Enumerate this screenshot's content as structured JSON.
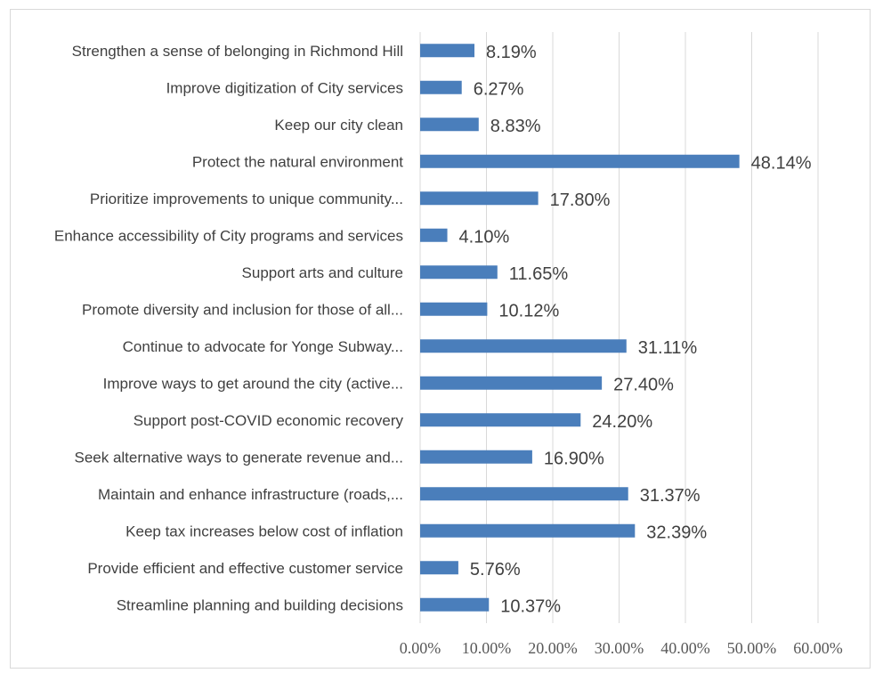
{
  "chart_data": {
    "type": "bar",
    "orientation": "horizontal",
    "title": "",
    "xlabel": "",
    "ylabel": "",
    "xlim": [
      0,
      60
    ],
    "x_ticks": [
      0,
      10,
      20,
      30,
      40,
      50,
      60
    ],
    "x_tick_labels": [
      "0.00%",
      "10.00%",
      "20.00%",
      "30.00%",
      "40.00%",
      "50.00%",
      "60.00%"
    ],
    "grid": "vertical",
    "legend": "none",
    "bar_color": "#4a7ebb",
    "categories": [
      "Strengthen a sense of belonging in Richmond Hill",
      "Improve digitization of City services",
      "Keep our city clean",
      "Protect the natural environment",
      "Prioritize improvements to unique community...",
      "Enhance accessibility of City programs and services",
      "Support arts and culture",
      "Promote diversity and inclusion for those of all...",
      "Continue to advocate for Yonge Subway...",
      "Improve ways to get around the city (active...",
      "Support post-COVID economic recovery",
      "Seek alternative ways to generate revenue and...",
      "Maintain and enhance infrastructure (roads,...",
      "Keep tax increases below cost of inflation",
      "Provide efficient and effective customer service",
      "Streamline planning and building decisions"
    ],
    "values": [
      8.19,
      6.27,
      8.83,
      48.14,
      17.8,
      4.1,
      11.65,
      10.12,
      31.11,
      27.4,
      24.2,
      16.9,
      31.37,
      32.39,
      5.76,
      10.37
    ],
    "value_labels": [
      "8.19%",
      "6.27%",
      "8.83%",
      "48.14%",
      "17.80%",
      "4.10%",
      "11.65%",
      "10.12%",
      "31.11%",
      "27.40%",
      "24.20%",
      "16.90%",
      "31.37%",
      "32.39%",
      "5.76%",
      "10.37%"
    ]
  }
}
